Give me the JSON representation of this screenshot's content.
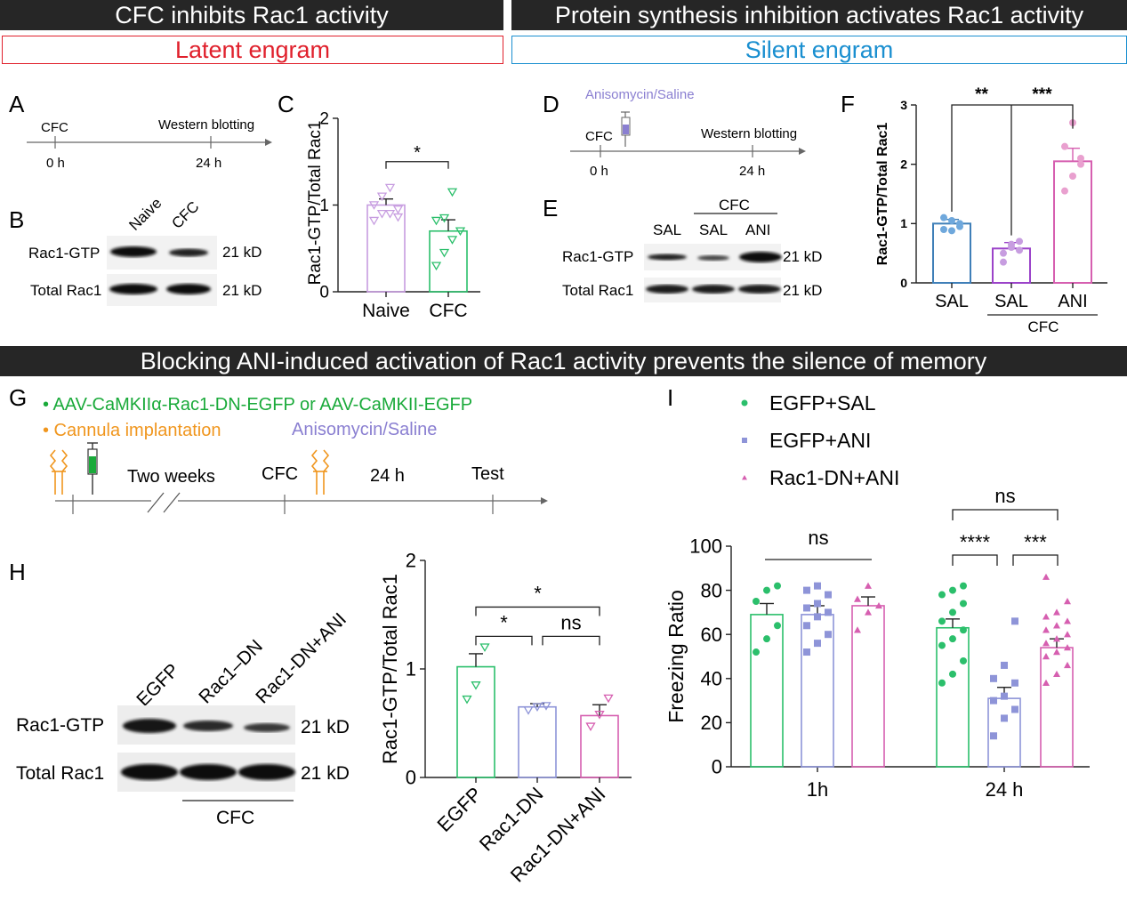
{
  "headers": {
    "left": "CFC inhibits Rac1 activity",
    "right": "Protein synthesis inhibition activates Rac1 activity",
    "middle": "Blocking ANI-induced activation of Rac1 activity prevents the silence of memory",
    "latent": "Latent engram",
    "silent": "Silent engram"
  },
  "colors": {
    "header_bg": "#262626",
    "latent": "#e0202c",
    "silent": "#1a8fd0",
    "green": "#2bbf6b",
    "blue_periwinkle": "#8e94d8",
    "pink": "#d65fb0",
    "purple": "#9b43c9",
    "lavender": "#c79de0",
    "steel_blue": "#3f7fb8",
    "light_blue": "#6fa8dc",
    "orange": "#f0961e",
    "violet_text": "#8a7fd1",
    "dark_green": "#1a9e3e"
  },
  "panels": {
    "A": {
      "letter": "A",
      "t0": "0 h",
      "t1": "24 h",
      "event0": "CFC",
      "event1": "Western blotting"
    },
    "B": {
      "letter": "B",
      "lanes": [
        "Naive",
        "CFC"
      ],
      "rows": [
        "Rac1-GTP",
        "Total Rac1"
      ],
      "kd": [
        "21 kD",
        "21 kD"
      ]
    },
    "D": {
      "letter": "D",
      "drug": "Anisomycin/Saline",
      "event0": "CFC",
      "event1": "Western blotting",
      "t0": "0 h",
      "t1": "24 h"
    },
    "E": {
      "letter": "E",
      "group_label": "CFC",
      "lanes": [
        "SAL",
        "SAL",
        "ANI"
      ],
      "rows": [
        "Rac1-GTP",
        "Total Rac1"
      ],
      "kd": [
        "21 kD",
        "21 kD"
      ]
    },
    "G": {
      "letter": "G",
      "line1": "• AAV-CaMKIIα-Rac1-DN-EGFP or  AAV-CaMKII-EGFP",
      "line2": "• Cannula implantation",
      "drug": "Anisomycin/Saline",
      "two_weeks": "Two weeks",
      "cfc": "CFC",
      "h24": "24 h",
      "test": "Test"
    },
    "H": {
      "letter": "H",
      "lanes": [
        "EGFP",
        "Rac1–DN",
        "Rac1-DN+ANI"
      ],
      "rows": [
        "Rac1-GTP",
        "Total Rac1"
      ],
      "kd": [
        "21 kD",
        "21 kD"
      ],
      "group_label": "CFC"
    }
  },
  "chart_data": [
    {
      "panel": "C",
      "type": "bar",
      "title": "",
      "xlabel": "",
      "ylabel": "Rac1-GTP/Total Rac1",
      "categories": [
        "Naive",
        "CFC"
      ],
      "values": [
        1.0,
        0.7
      ],
      "errors": [
        0.07,
        0.13
      ],
      "ylim": [
        0,
        2
      ],
      "yticks": [
        "0",
        "1",
        "2"
      ],
      "colors": [
        "#c79de0",
        "#2bbf6b"
      ],
      "marker": "triangle-down-open",
      "points": [
        [
          0.82,
          0.9,
          0.9,
          0.95,
          1.0,
          1.1,
          1.2,
          0.86
        ],
        [
          0.3,
          0.45,
          0.6,
          0.7,
          0.82,
          0.85,
          1.15
        ]
      ],
      "significance": [
        {
          "from": 0,
          "to": 1,
          "label": "*",
          "level": 1.5
        }
      ]
    },
    {
      "panel": "F",
      "type": "bar",
      "title": "",
      "xlabel": "",
      "ylabel": "Rac1-GTP/Total Rac1",
      "categories": [
        "SAL",
        "SAL",
        "ANI"
      ],
      "group_label": "CFC",
      "values": [
        1.0,
        0.58,
        2.05
      ],
      "errors": [
        0.07,
        0.1,
        0.22
      ],
      "ylim": [
        0,
        3
      ],
      "yticks": [
        "0",
        "1",
        "2",
        "3"
      ],
      "colors": [
        "#3f7fb8",
        "#9b43c9",
        "#d65fb0"
      ],
      "point_colors": [
        "#6fa8dc",
        "#c79de0",
        "#e9a0cf"
      ],
      "marker": "filled",
      "points": [
        [
          0.9,
          1.05,
          0.95,
          1.1,
          0.88,
          1.0
        ],
        [
          0.35,
          0.6,
          0.7,
          0.5,
          0.65,
          0.55
        ],
        [
          1.55,
          1.8,
          2.1,
          2.3,
          2.7,
          2.0
        ]
      ],
      "significance": [
        {
          "from": 0,
          "to": 1,
          "label": "**",
          "level": 3.0
        },
        {
          "from": 1,
          "to": 2,
          "label": "***",
          "level": 3.0
        }
      ]
    },
    {
      "panel": "H",
      "type": "bar",
      "title": "",
      "xlabel": "",
      "ylabel": "Rac1-GTP/Total Rac1",
      "categories": [
        "EGFP",
        "Rac1-DN",
        "Rac1-DN+ANI"
      ],
      "values": [
        1.02,
        0.65,
        0.57
      ],
      "errors": [
        0.12,
        0.03,
        0.1
      ],
      "ylim": [
        0,
        2
      ],
      "yticks": [
        "0",
        "1",
        "2"
      ],
      "colors": [
        "#2bbf6b",
        "#8e94d8",
        "#d65fb0"
      ],
      "marker": "triangle-down-open",
      "points": [
        [
          0.72,
          0.85,
          1.2
        ],
        [
          0.62,
          0.65,
          0.66
        ],
        [
          0.47,
          0.58,
          0.73
        ]
      ],
      "significance": [
        {
          "from": 0,
          "to": 1,
          "label": "*",
          "level": 1.3
        },
        {
          "from": 1,
          "to": 2,
          "label": "ns",
          "level": 1.3
        },
        {
          "from": 0,
          "to": 2,
          "label": "*",
          "level": 1.57
        }
      ]
    },
    {
      "panel": "I",
      "type": "bar",
      "title": "",
      "xlabel": "",
      "ylabel": "Freezing Ratio",
      "categories": [
        "1h",
        "24 h"
      ],
      "ylim": [
        0,
        100
      ],
      "yticks": [
        "0",
        "20",
        "40",
        "60",
        "80",
        "100"
      ],
      "series": [
        {
          "name": "EGFP+SAL",
          "color": "#2bbf6b",
          "marker": "circle",
          "values": [
            69,
            63
          ],
          "errors": [
            5,
            4
          ],
          "points": [
            [
              52,
              58,
              64,
              75,
              80,
              82
            ],
            [
              38,
              42,
              48,
              55,
              58,
              62,
              66,
              70,
              74,
              78,
              80,
              82
            ]
          ]
        },
        {
          "name": "EGFP+ANI",
          "color": "#8e94d8",
          "marker": "square",
          "values": [
            69,
            31
          ],
          "errors": [
            4,
            5
          ],
          "points": [
            [
              52,
              56,
              60,
              64,
              68,
              70,
              72,
              74,
              78,
              80,
              82
            ],
            [
              14,
              22,
              26,
              30,
              32,
              38,
              40,
              46,
              66
            ]
          ]
        },
        {
          "name": "Rac1-DN+ANI",
          "color": "#d65fb0",
          "marker": "triangle",
          "values": [
            73,
            54
          ],
          "errors": [
            4,
            4
          ],
          "points": [
            [
              62,
              70,
              73,
              76,
              82
            ],
            [
              38,
              42,
              46,
              50,
              52,
              54,
              56,
              58,
              60,
              62,
              64,
              66,
              68,
              70,
              75,
              86
            ]
          ]
        }
      ],
      "significance": [
        {
          "label": "ns",
          "scope": "1h"
        },
        {
          "label": "ns",
          "scope": "24 h",
          "from": 0,
          "to": 2
        },
        {
          "label": "****",
          "scope": "24 h",
          "from": 0,
          "to": 1
        },
        {
          "label": "***",
          "scope": "24 h",
          "from": 1,
          "to": 2
        }
      ]
    }
  ]
}
